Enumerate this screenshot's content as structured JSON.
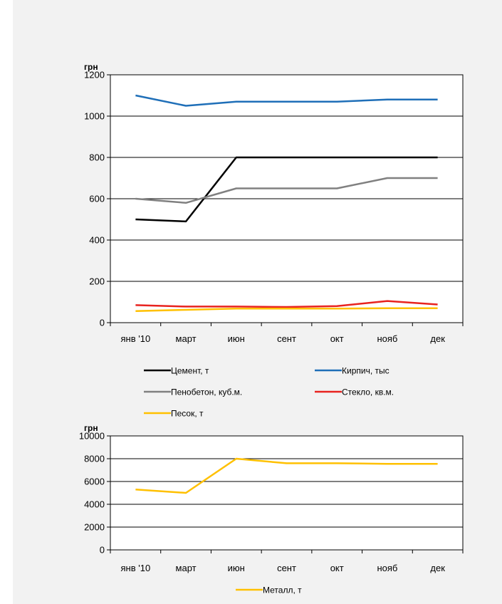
{
  "chart_data": [
    {
      "type": "line",
      "ylabel": "грн",
      "categories": [
        "янв '10",
        "март",
        "июн",
        "сент",
        "окт",
        "нояб",
        "дек"
      ],
      "ylim": [
        0,
        1200
      ],
      "yticks": [
        0,
        200,
        400,
        600,
        800,
        1000,
        1200
      ],
      "grid": true,
      "legend_position": "bottom",
      "series": [
        {
          "name": "Цемент, т",
          "color": "#000000",
          "values": [
            500,
            490,
            800,
            800,
            800,
            800,
            800
          ]
        },
        {
          "name": "Кирпич, тыс",
          "color": "#1f6fb8",
          "values": [
            1100,
            1050,
            1070,
            1070,
            1070,
            1080,
            1080
          ]
        },
        {
          "name": "Пенобетон, куб.м.",
          "color": "#808080",
          "values": [
            600,
            580,
            650,
            650,
            650,
            700,
            700
          ]
        },
        {
          "name": "Стекло, кв.м.",
          "color": "#e8231f",
          "values": [
            85,
            78,
            78,
            76,
            80,
            105,
            88
          ]
        },
        {
          "name": "Песок, т",
          "color": "#ffc000",
          "values": [
            56,
            62,
            68,
            68,
            68,
            70,
            70
          ]
        }
      ]
    },
    {
      "type": "line",
      "ylabel": "грн",
      "categories": [
        "янв '10",
        "март",
        "июн",
        "сент",
        "окт",
        "нояб",
        "дек"
      ],
      "ylim": [
        0,
        10000
      ],
      "yticks": [
        0,
        2000,
        4000,
        6000,
        8000,
        10000
      ],
      "grid": true,
      "legend_position": "bottom",
      "series": [
        {
          "name": "Металл, т",
          "color": "#ffc000",
          "values": [
            5300,
            5000,
            8000,
            7600,
            7600,
            7550,
            7550
          ]
        }
      ]
    }
  ]
}
